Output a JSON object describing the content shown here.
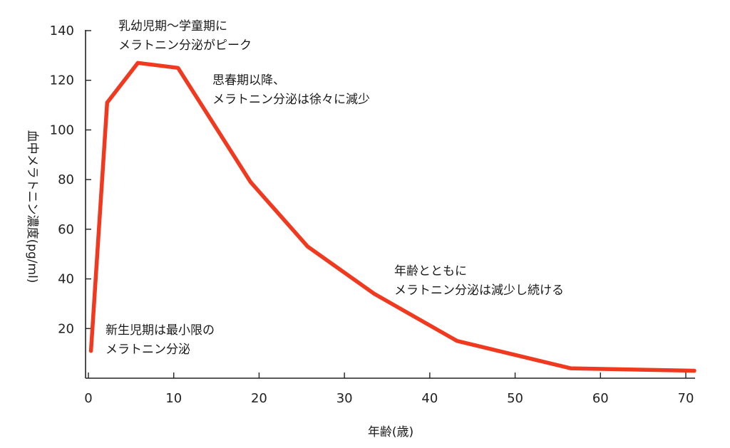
{
  "chart_data": {
    "type": "line",
    "xlabel": "年齢(歳)",
    "ylabel": "血中メラトニン濃度(pg/ml)",
    "xlim": [
      0,
      71
    ],
    "ylim": [
      0,
      140
    ],
    "x_ticks": [
      0,
      10,
      20,
      30,
      40,
      50,
      60,
      70
    ],
    "y_ticks": [
      20,
      40,
      60,
      80,
      100,
      120,
      140
    ],
    "x_tick_labels": [
      "0",
      "10",
      "20",
      "30",
      "40",
      "50",
      "60",
      "70"
    ],
    "y_tick_labels": [
      "20",
      "40",
      "60",
      "80",
      "100",
      "120",
      "140"
    ],
    "series": [
      {
        "color": "#f0391f",
        "x": [
          0.3,
          2.2,
          5.8,
          10.5,
          19,
          25.7,
          33.5,
          43.2,
          56.5,
          71
        ],
        "y": [
          11,
          111,
          127,
          125,
          79,
          53,
          34,
          15,
          4,
          3
        ]
      }
    ],
    "annotations": [
      {
        "lines": [
          "乳幼児期〜学童期に",
          "メラトニン分泌がピーク"
        ]
      },
      {
        "lines": [
          "思春期以降、",
          "メラトニン分泌は徐々に減少"
        ]
      },
      {
        "lines": [
          "年齢とともに",
          "メラトニン分泌は減少し続ける"
        ]
      },
      {
        "lines": [
          "新生児期は最小限の",
          "メラトニン分泌"
        ]
      }
    ],
    "grid": false,
    "legend": "none"
  }
}
